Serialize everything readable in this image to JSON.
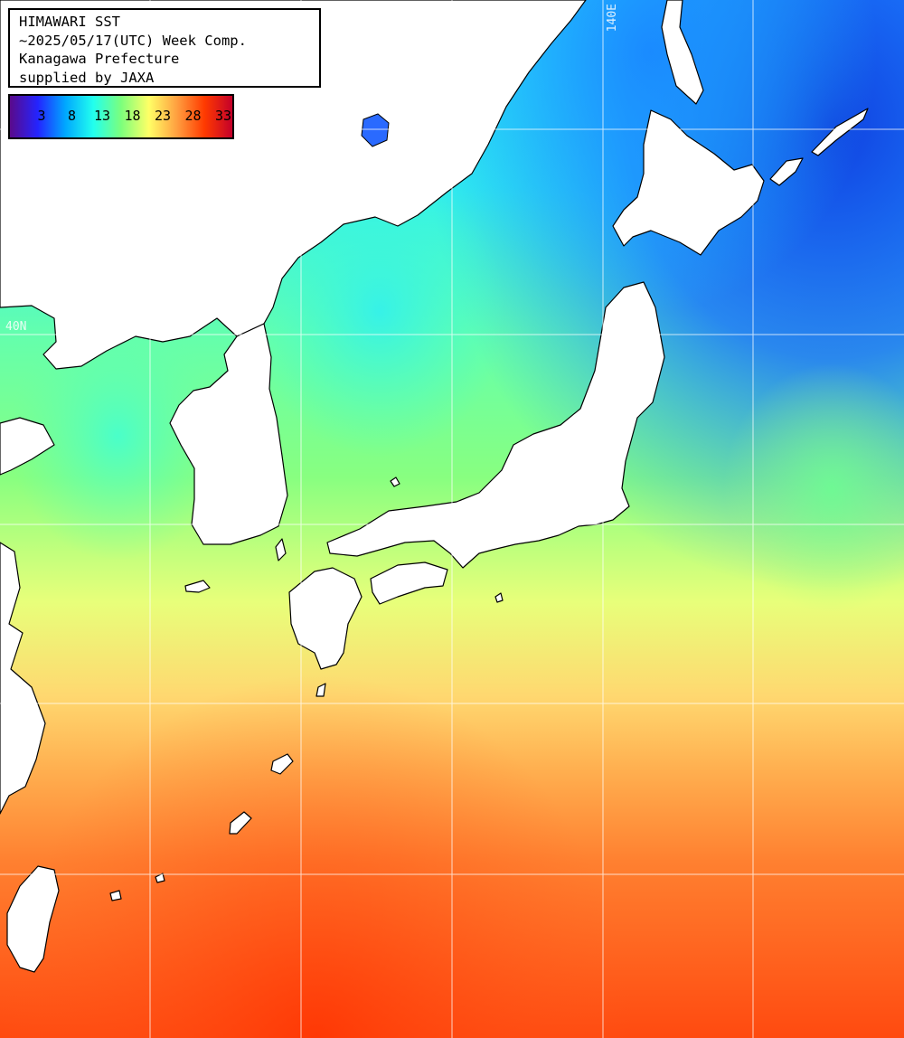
{
  "header": {
    "line1": "HIMAWARI SST",
    "line2": "~2025/05/17(UTC) Week Comp.",
    "line3": "Kanagawa Prefecture",
    "line4": "supplied by JAXA"
  },
  "legend": {
    "ticks": [
      "3",
      "8",
      "13",
      "18",
      "23",
      "28",
      "33"
    ],
    "colors": [
      "#5a0a8a",
      "#2424ff",
      "#00a8ff",
      "#22ffee",
      "#7cff7c",
      "#ffff66",
      "#ffa040",
      "#ff3a00",
      "#c4002a"
    ]
  },
  "grid": {
    "lat_label": "40N",
    "lon_label": "140E"
  },
  "colors": {
    "land": "#ffffff",
    "coast": "#000000",
    "gridline": "#ffffff"
  }
}
